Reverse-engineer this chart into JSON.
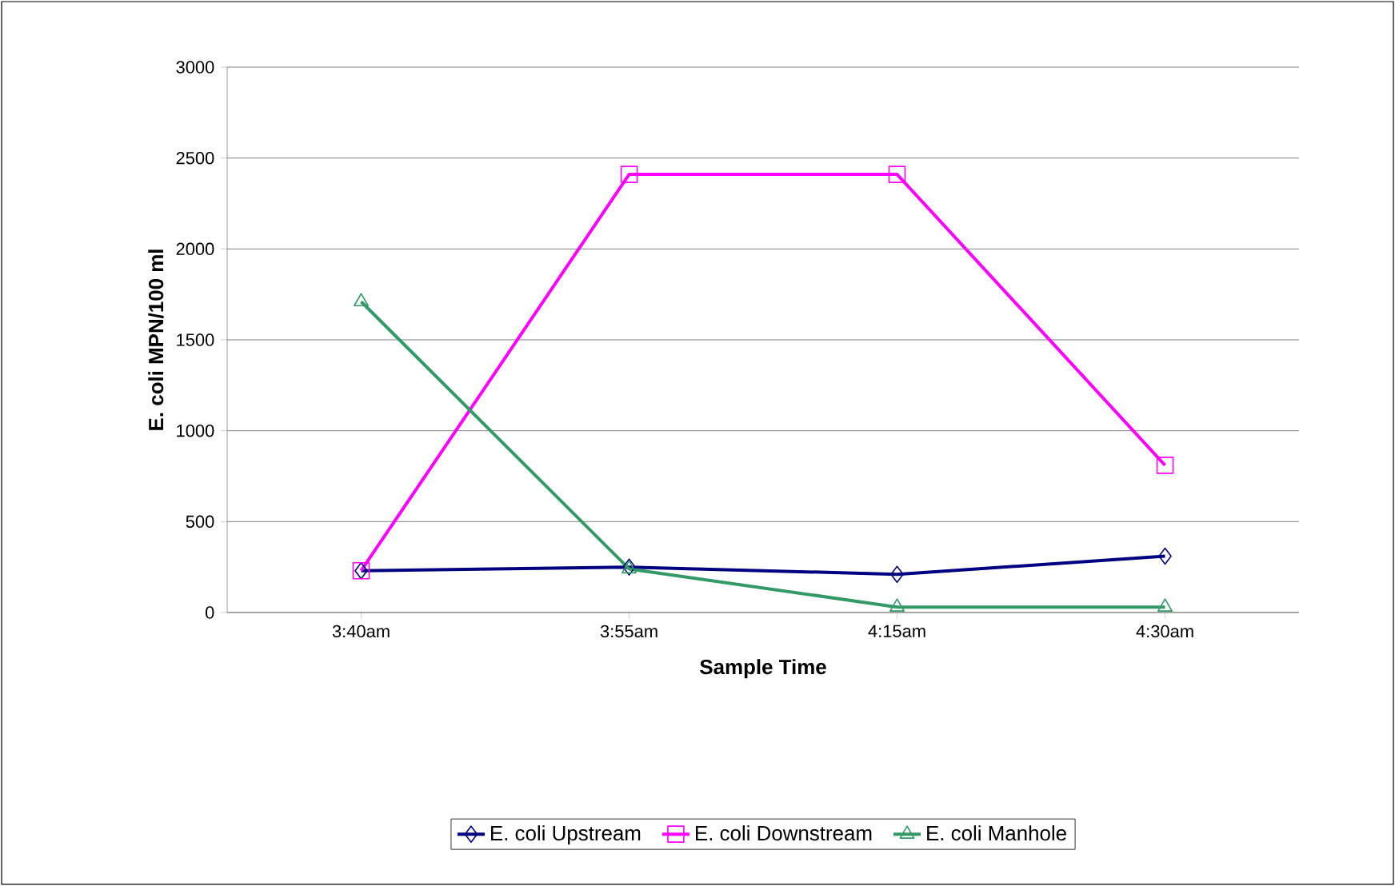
{
  "chart_data": {
    "type": "line",
    "xlabel": "Sample Time",
    "ylabel": "E. coli MPN/100 ml",
    "categories": [
      "3:40am",
      "3:55am",
      "4:15am",
      "4:30am"
    ],
    "series": [
      {
        "name": "E. coli Upstream",
        "color": "#000080",
        "marker": "diamond",
        "values": [
          230,
          250,
          210,
          310
        ]
      },
      {
        "name": "E. coli Downstream",
        "color": "#ff00ff",
        "marker": "square",
        "values": [
          230,
          2410,
          2410,
          810
        ]
      },
      {
        "name": "E. coli Manhole",
        "color": "#339966",
        "marker": "triangle",
        "values": [
          1710,
          240,
          30,
          30
        ]
      }
    ],
    "ylim": [
      0,
      3000
    ],
    "yticks": [
      0,
      500,
      1000,
      1500,
      2000,
      2500,
      3000
    ],
    "grid": "y",
    "legend": "bottom"
  }
}
